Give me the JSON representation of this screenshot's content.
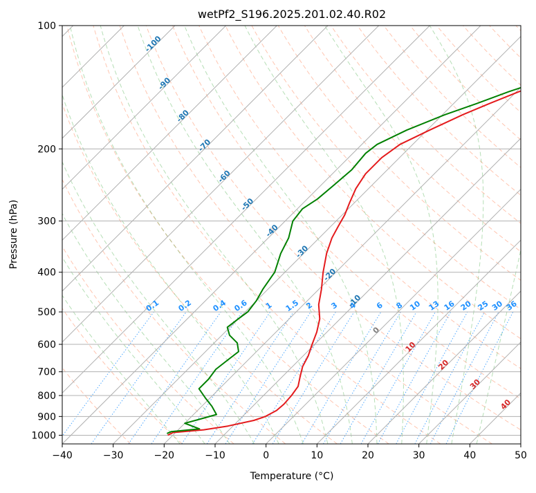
{
  "chart_data": {
    "type": "skew-t log-p",
    "title": "wetPf2_S196.2025.201.02.40.R02",
    "xlabel": "Temperature (°C)",
    "ylabel": "Pressure (hPa)",
    "xlim": [
      -40,
      50
    ],
    "ylim": [
      1050,
      100
    ],
    "y_scale": "log",
    "grid": true,
    "x_ticks": [
      -40,
      -30,
      -20,
      -10,
      0,
      10,
      20,
      30,
      40,
      50
    ],
    "x_tick_labels": [
      "−40",
      "−30",
      "−20",
      "−10",
      "0",
      "10",
      "20",
      "30",
      "40",
      "50"
    ],
    "y_ticks": [
      100,
      200,
      300,
      400,
      500,
      600,
      700,
      800,
      900,
      1000
    ],
    "y_tick_labels": [
      "100",
      "200",
      "300",
      "400",
      "500",
      "600",
      "700",
      "800",
      "900",
      "1000"
    ],
    "series": [
      {
        "role": "temperature",
        "color": "#e41a1c",
        "points": [
          {
            "p": 1000,
            "t": -21
          },
          {
            "p": 985,
            "t": -20.5
          },
          {
            "p": 970,
            "t": -15
          },
          {
            "p": 950,
            "t": -11
          },
          {
            "p": 920,
            "t": -7
          },
          {
            "p": 900,
            "t": -5.5
          },
          {
            "p": 870,
            "t": -4.5
          },
          {
            "p": 840,
            "t": -4.3
          },
          {
            "p": 800,
            "t": -4.5
          },
          {
            "p": 760,
            "t": -5
          },
          {
            "p": 720,
            "t": -6.5
          },
          {
            "p": 680,
            "t": -8
          },
          {
            "p": 640,
            "t": -9
          },
          {
            "p": 600,
            "t": -10.5
          },
          {
            "p": 560,
            "t": -12
          },
          {
            "p": 520,
            "t": -14
          },
          {
            "p": 480,
            "t": -17
          },
          {
            "p": 440,
            "t": -19.5
          },
          {
            "p": 400,
            "t": -22.5
          },
          {
            "p": 360,
            "t": -25.5
          },
          {
            "p": 330,
            "t": -27.5
          },
          {
            "p": 310,
            "t": -28.5
          },
          {
            "p": 290,
            "t": -29.5
          },
          {
            "p": 270,
            "t": -31
          },
          {
            "p": 250,
            "t": -32.5
          },
          {
            "p": 230,
            "t": -33.5
          },
          {
            "p": 210,
            "t": -33.5
          },
          {
            "p": 195,
            "t": -32.5
          },
          {
            "p": 180,
            "t": -29.5
          },
          {
            "p": 165,
            "t": -26
          },
          {
            "p": 155,
            "t": -23
          },
          {
            "p": 145,
            "t": -19.5
          },
          {
            "p": 135,
            "t": -15
          },
          {
            "p": 125,
            "t": -11
          },
          {
            "p": 115,
            "t": -8
          },
          {
            "p": 107,
            "t": -5
          },
          {
            "p": 100,
            "t": -2
          }
        ]
      },
      {
        "role": "dewpoint",
        "color": "#008000",
        "points": [
          {
            "p": 990,
            "t": -21.5
          },
          {
            "p": 980,
            "t": -21
          },
          {
            "p": 965,
            "t": -16
          },
          {
            "p": 950,
            "t": -18
          },
          {
            "p": 935,
            "t": -20
          },
          {
            "p": 915,
            "t": -18
          },
          {
            "p": 890,
            "t": -15.5
          },
          {
            "p": 850,
            "t": -18
          },
          {
            "p": 810,
            "t": -21
          },
          {
            "p": 770,
            "t": -24
          },
          {
            "p": 730,
            "t": -24
          },
          {
            "p": 690,
            "t": -24.5
          },
          {
            "p": 655,
            "t": -24
          },
          {
            "p": 625,
            "t": -23.5
          },
          {
            "p": 595,
            "t": -25.5
          },
          {
            "p": 570,
            "t": -28.5
          },
          {
            "p": 545,
            "t": -30.5
          },
          {
            "p": 520,
            "t": -30
          },
          {
            "p": 500,
            "t": -29.5
          },
          {
            "p": 470,
            "t": -30
          },
          {
            "p": 440,
            "t": -31
          },
          {
            "p": 400,
            "t": -32
          },
          {
            "p": 360,
            "t": -34.5
          },
          {
            "p": 330,
            "t": -36
          },
          {
            "p": 300,
            "t": -38.5
          },
          {
            "p": 280,
            "t": -39
          },
          {
            "p": 265,
            "t": -38
          },
          {
            "p": 245,
            "t": -37.5
          },
          {
            "p": 225,
            "t": -37
          },
          {
            "p": 205,
            "t": -37.5
          },
          {
            "p": 195,
            "t": -37
          },
          {
            "p": 180,
            "t": -34
          },
          {
            "p": 165,
            "t": -29.5
          },
          {
            "p": 155,
            "t": -25.5
          },
          {
            "p": 145,
            "t": -21.5
          },
          {
            "p": 135,
            "t": -16.5
          },
          {
            "p": 125,
            "t": -12.5
          },
          {
            "p": 115,
            "t": -9
          },
          {
            "p": 105,
            "t": -4.5
          },
          {
            "p": 100,
            "t": -2.5
          }
        ]
      }
    ],
    "isotherm_labels": [
      "-100",
      "-90",
      "-80",
      "-70",
      "-60",
      "-50",
      "-40",
      "-30",
      "-20",
      "-10",
      "0",
      "10",
      "20",
      "30",
      "40"
    ],
    "isotherm_label_colors": {
      "cold": "#1f77b4",
      "zero": "#808080",
      "warm": "#d62728"
    },
    "mixing_ratio_labels": [
      "0.1",
      "0.2",
      "0.4",
      "0.6",
      "1",
      "1.5",
      "2",
      "3",
      "4",
      "6",
      "8",
      "10",
      "13",
      "16",
      "20",
      "25",
      "30",
      "36"
    ],
    "mixing_ratio_color": "#1e90ff",
    "dry_adiabat_color": "#ff7f50",
    "moist_adiabat_color": "#2ca02c",
    "grid_color": "#b0b0b0"
  }
}
